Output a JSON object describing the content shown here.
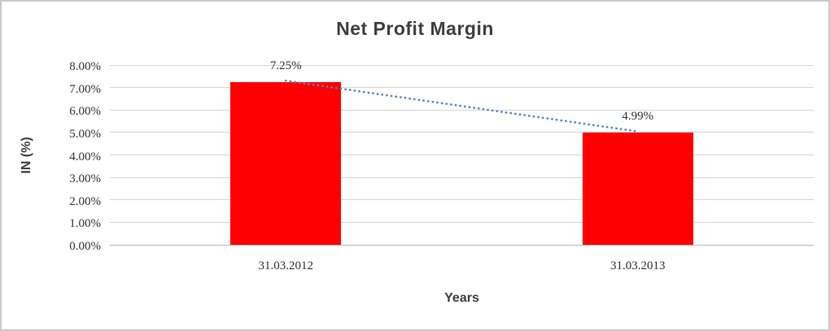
{
  "chart_data": {
    "type": "bar",
    "title": "Net Profit Margin",
    "xlabel": "Years",
    "ylabel": "IN (%)",
    "categories": [
      "31.03.2012",
      "31.03.2013"
    ],
    "series": [
      {
        "name": "Net Profit Margin",
        "values": [
          7.25,
          4.99
        ]
      }
    ],
    "data_labels": [
      "7.25%",
      "4.99%"
    ],
    "ylim": [
      0,
      8
    ],
    "y_tick_step": 1,
    "y_ticks": [
      {
        "value": 8,
        "label": "8.00%"
      },
      {
        "value": 7,
        "label": "7.00%"
      },
      {
        "value": 6,
        "label": "6.00%"
      },
      {
        "value": 5,
        "label": "5.00%"
      },
      {
        "value": 4,
        "label": "4.00%"
      },
      {
        "value": 3,
        "label": "3.00%"
      },
      {
        "value": 2,
        "label": "2.00%"
      },
      {
        "value": 1,
        "label": "1.00%"
      },
      {
        "value": 0,
        "label": "0.00%"
      }
    ],
    "grid": true,
    "legend": "none",
    "trendline": {
      "type": "linear",
      "style": "dotted"
    },
    "colors": {
      "bar": "#FF0000",
      "trendline": "#4E87C8",
      "gridline": "#D6D6D6",
      "axis_line": "#B9B9B9",
      "text": "#3F3F3F",
      "tick_text": "#333333",
      "border": "#C9C9C9"
    }
  }
}
